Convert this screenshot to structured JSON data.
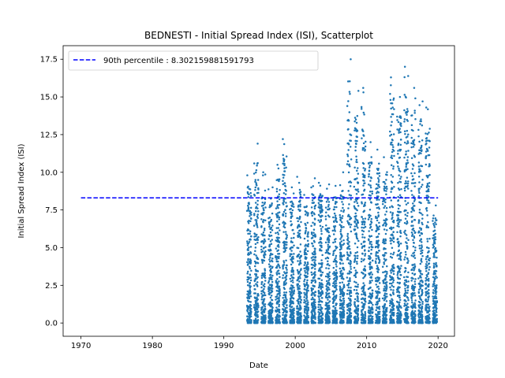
{
  "chart_data": {
    "type": "scatter",
    "title": "BEDNESTI - Initial Spread Index (ISI), Scatterplot",
    "xlabel": "Date",
    "ylabel": "Initial Spread Index (ISI)",
    "xlim": [
      1967.5,
      2022.3
    ],
    "ylim": [
      -0.88,
      18.4
    ],
    "x_ticks": [
      1970,
      1980,
      1990,
      2000,
      2010,
      2020
    ],
    "x_tick_labels": [
      "1970",
      "1980",
      "1990",
      "2000",
      "2010",
      "2020"
    ],
    "y_ticks": [
      0.0,
      2.5,
      5.0,
      7.5,
      10.0,
      12.5,
      15.0,
      17.5
    ],
    "y_tick_labels": [
      "0.0",
      "2.5",
      "5.0",
      "7.5",
      "10.0",
      "12.5",
      "15.0",
      "17.5"
    ],
    "grid": false,
    "legend_position": "top-left",
    "percentile_line": {
      "label": "90th percentile : 8.302159881591793",
      "value": 8.302159881591793,
      "x_start": 1970,
      "x_end": 2020,
      "color": "#0000ff",
      "style": "dashed"
    },
    "series": [
      {
        "marker_color": "#1f77b4",
        "seasons": [
          {
            "year": 1993,
            "max": 9.8
          },
          {
            "year": 1994,
            "max": 11.9
          },
          {
            "year": 1995,
            "max": 10.0
          },
          {
            "year": 1996,
            "max": 9.0
          },
          {
            "year": 1997,
            "max": 10.5
          },
          {
            "year": 1998,
            "max": 12.2
          },
          {
            "year": 1999,
            "max": 9.0
          },
          {
            "year": 2000,
            "max": 9.7
          },
          {
            "year": 2001,
            "max": 8.5
          },
          {
            "year": 2002,
            "max": 9.6
          },
          {
            "year": 2003,
            "max": 9.3
          },
          {
            "year": 2004,
            "max": 9.2
          },
          {
            "year": 2005,
            "max": 9.1
          },
          {
            "year": 2006,
            "max": 10.0
          },
          {
            "year": 2007,
            "max": 17.5
          },
          {
            "year": 2008,
            "max": 15.4
          },
          {
            "year": 2009,
            "max": 15.6
          },
          {
            "year": 2010,
            "max": 12.0
          },
          {
            "year": 2011,
            "max": 11.5
          },
          {
            "year": 2012,
            "max": 11.0
          },
          {
            "year": 2013,
            "max": 16.3
          },
          {
            "year": 2014,
            "max": 15.0
          },
          {
            "year": 2015,
            "max": 17.0
          },
          {
            "year": 2016,
            "max": 15.6
          },
          {
            "year": 2017,
            "max": 14.7
          },
          {
            "year": 2018,
            "max": 14.3
          },
          {
            "year": 2019,
            "max": 7.8
          }
        ]
      }
    ]
  }
}
